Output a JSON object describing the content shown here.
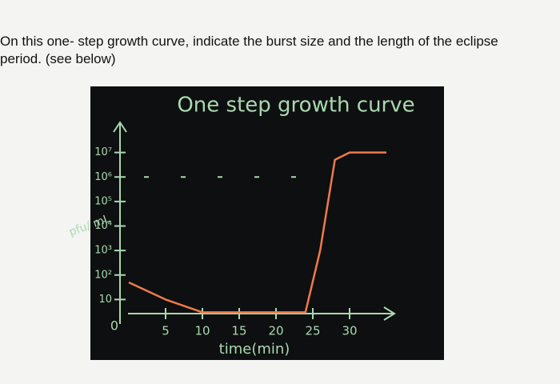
{
  "question": {
    "line1": "On this one- step growth curve, indicate the burst size and the length of the eclipse",
    "line2": "period. (see below)"
  },
  "chart_data": {
    "type": "line",
    "title": "One step growth curve",
    "x_label": "time(min)",
    "y_label": "pfu/ mL",
    "origin_label": "0",
    "x": [
      0,
      5,
      10,
      15,
      20,
      24,
      26,
      28,
      30,
      35
    ],
    "series": [
      {
        "name": "one step growth",
        "color": "#f07a4a",
        "values": [
          50,
          10,
          3,
          3,
          3,
          3,
          1000,
          5000000,
          10000000,
          10000000
        ]
      }
    ],
    "reference_level": 1000000,
    "log_scale_y": true,
    "xlim": [
      0,
      35
    ],
    "xticks": [
      5,
      10,
      15,
      20,
      25,
      30
    ],
    "ylim": [
      1,
      100000000
    ],
    "yticks": [
      10,
      {
        "value": 100,
        "label": "10²"
      },
      {
        "value": 1000,
        "label": "10³"
      },
      {
        "value": 10000,
        "label": "10⁴"
      },
      {
        "value": 100000,
        "label": "10⁵"
      },
      {
        "value": 1000000,
        "label": "10⁶"
      },
      {
        "value": 10000000,
        "label": "10⁷"
      }
    ]
  }
}
